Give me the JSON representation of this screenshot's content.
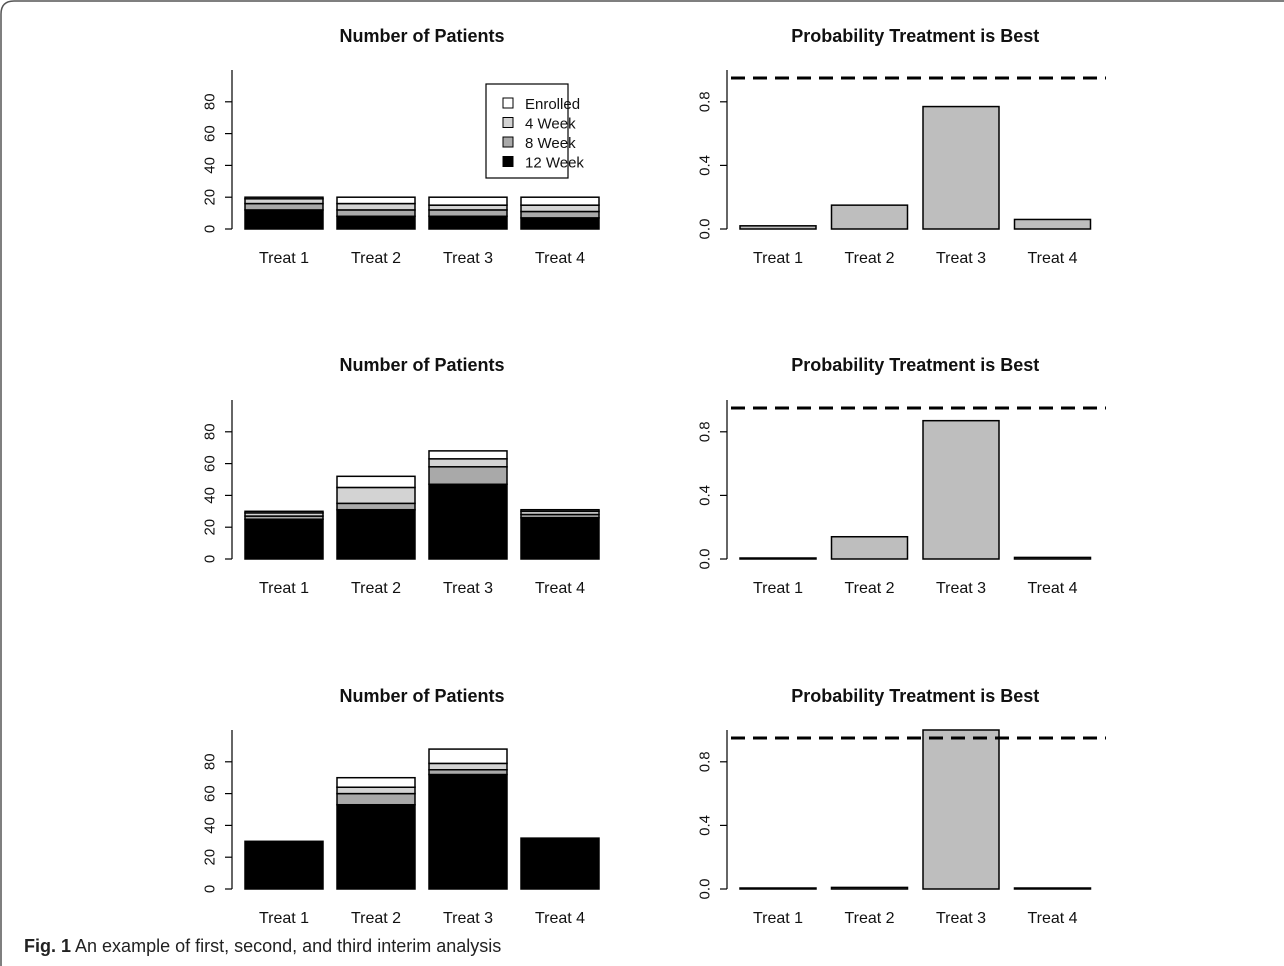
{
  "caption": {
    "label": "Fig. 1",
    "text": "An example of first, second, and third interim analysis"
  },
  "colors": {
    "enrolled": "#ffffff",
    "week4": "#d3d3d3",
    "week8": "#a9a9a9",
    "week12": "#000000",
    "prob_bar": "#bebebe"
  },
  "chart_data": [
    {
      "type": "bar",
      "stacked": true,
      "title": "Number of Patients",
      "categories": [
        "Treat 1",
        "Treat 2",
        "Treat 3",
        "Treat 4"
      ],
      "ylim": [
        0,
        100
      ],
      "yticks": [
        0,
        20,
        40,
        60,
        80
      ],
      "legend": {
        "placement": "top-right",
        "entries": [
          "Enrolled",
          "4 Week",
          "8 Week",
          "12 Week"
        ]
      },
      "series": [
        {
          "name": "12 Week",
          "values": [
            12,
            8,
            8,
            7
          ]
        },
        {
          "name": "8 Week",
          "values": [
            4,
            4,
            4,
            4
          ]
        },
        {
          "name": "4 Week",
          "values": [
            3,
            4,
            3,
            4
          ]
        },
        {
          "name": "Enrolled",
          "values": [
            1,
            4,
            5,
            5
          ]
        }
      ],
      "grid": false
    },
    {
      "type": "bar",
      "title": "Probability Treatment is Best",
      "categories": [
        "Treat 1",
        "Treat 2",
        "Treat 3",
        "Treat 4"
      ],
      "ylim": [
        0,
        1
      ],
      "yticks": [
        0.0,
        0.4,
        0.8
      ],
      "ytick_labels": [
        "0.0",
        "0.4",
        "0.8"
      ],
      "values": [
        0.02,
        0.15,
        0.77,
        0.06
      ],
      "threshold": 0.95,
      "grid": false
    },
    {
      "type": "bar",
      "stacked": true,
      "title": "Number of Patients",
      "categories": [
        "Treat 1",
        "Treat 2",
        "Treat 3",
        "Treat 4"
      ],
      "ylim": [
        0,
        100
      ],
      "yticks": [
        0,
        20,
        40,
        60,
        80
      ],
      "series": [
        {
          "name": "12 Week",
          "values": [
            25,
            31,
            47,
            26
          ]
        },
        {
          "name": "8 Week",
          "values": [
            2,
            4,
            11,
            2
          ]
        },
        {
          "name": "4 Week",
          "values": [
            2,
            10,
            5,
            2
          ]
        },
        {
          "name": "Enrolled",
          "values": [
            1,
            7,
            5,
            1
          ]
        }
      ],
      "grid": false
    },
    {
      "type": "bar",
      "title": "Probability Treatment is Best",
      "categories": [
        "Treat 1",
        "Treat 2",
        "Treat 3",
        "Treat 4"
      ],
      "ylim": [
        0,
        1
      ],
      "yticks": [
        0.0,
        0.4,
        0.8
      ],
      "ytick_labels": [
        "0.0",
        "0.4",
        "0.8"
      ],
      "values": [
        0.0,
        0.14,
        0.87,
        0.01
      ],
      "threshold": 0.95,
      "grid": false
    },
    {
      "type": "bar",
      "stacked": true,
      "title": "Number of Patients",
      "categories": [
        "Treat 1",
        "Treat 2",
        "Treat 3",
        "Treat 4"
      ],
      "ylim": [
        0,
        100
      ],
      "yticks": [
        0,
        20,
        40,
        60,
        80
      ],
      "series": [
        {
          "name": "12 Week",
          "values": [
            30,
            53,
            72,
            32
          ]
        },
        {
          "name": "8 Week",
          "values": [
            0,
            7,
            3,
            0
          ]
        },
        {
          "name": "4 Week",
          "values": [
            0,
            4,
            4,
            0
          ]
        },
        {
          "name": "Enrolled",
          "values": [
            0,
            6,
            9,
            0
          ]
        }
      ],
      "grid": false
    },
    {
      "type": "bar",
      "title": "Probability Treatment is Best",
      "categories": [
        "Treat 1",
        "Treat 2",
        "Treat 3",
        "Treat 4"
      ],
      "ylim": [
        0,
        1
      ],
      "yticks": [
        0.0,
        0.4,
        0.8
      ],
      "ytick_labels": [
        "0.0",
        "0.4",
        "0.8"
      ],
      "values": [
        0.0,
        0.01,
        1.0,
        0.0
      ],
      "threshold": 0.95,
      "grid": false
    }
  ]
}
